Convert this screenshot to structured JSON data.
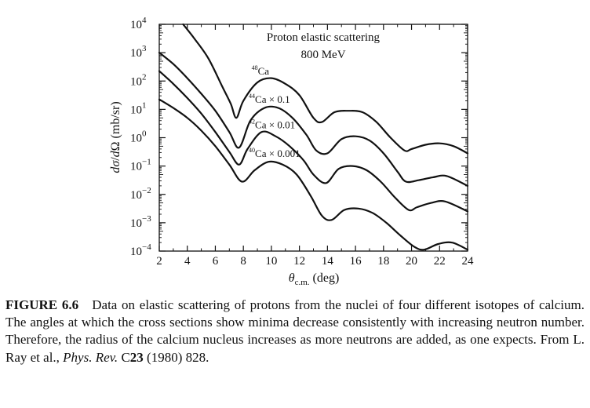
{
  "figure": {
    "title_line1": "Proton elastic scattering",
    "title_line2": "800 MeV",
    "caption": {
      "label": "FIGURE 6.6",
      "text": "Data on elastic scattering of protons from the nuclei of four different isotopes of calcium. The angles at which the cross sections show minima decrease consistently with increasing neutron number. Therefore, the radius of the calcium nucleus increases as more neutrons are added, as one expects. From L. Ray et al., ",
      "journal": "Phys. Rev.",
      "journal_suffix": " C",
      "volume": "23",
      "rest": " (1980) 828."
    }
  },
  "chart_data": {
    "type": "line",
    "title": "Proton elastic scattering 800 MeV",
    "xlabel": "θc.m. (deg)",
    "ylabel": "dσ/dΩ (mb/sr)",
    "xlim": [
      2,
      24
    ],
    "ylim_log10": [
      -4,
      4
    ],
    "log_y": true,
    "grid": false,
    "x_ticks": [
      "2",
      "4",
      "6",
      "8",
      "10",
      "12",
      "14",
      "16",
      "18",
      "20",
      "22",
      "24"
    ],
    "y_ticks": [
      {
        "base": "10",
        "exp": "4"
      },
      {
        "base": "10",
        "exp": "3"
      },
      {
        "base": "10",
        "exp": "2"
      },
      {
        "base": "10",
        "exp": "1"
      },
      {
        "base": "10",
        "exp": "0"
      },
      {
        "base": "10",
        "exp": "−1"
      },
      {
        "base": "10",
        "exp": "−2"
      },
      {
        "base": "10",
        "exp": "−3"
      },
      {
        "base": "10",
        "exp": "−4"
      }
    ],
    "series": [
      {
        "name": "48Ca",
        "label_sup": "48",
        "label_main": "Ca",
        "x": [
          3.7,
          4.5,
          5.5,
          6.5,
          7.1,
          7.5,
          8.0,
          9.0,
          10.0,
          11.0,
          12.0,
          13.0,
          13.6,
          14.5,
          15.5,
          16.5,
          17.5,
          18.5,
          19.5,
          20.0,
          21.0,
          22.0,
          23.0,
          24.0
        ],
        "log10_y": [
          4.0,
          3.5,
          2.8,
          1.8,
          1.2,
          0.7,
          1.3,
          1.95,
          2.1,
          1.9,
          1.5,
          0.7,
          0.55,
          0.9,
          0.95,
          0.9,
          0.55,
          0.0,
          -0.45,
          -0.4,
          -0.25,
          -0.2,
          -0.3,
          -0.55
        ]
      },
      {
        "name": "44Ca × 0.1",
        "label_sup": "44",
        "label_main": "Ca × 0.1",
        "x": [
          2.0,
          3.0,
          4.0,
          5.0,
          6.0,
          7.0,
          7.7,
          8.5,
          9.5,
          10.5,
          11.5,
          12.5,
          13.2,
          14.0,
          15.0,
          16.0,
          17.0,
          18.0,
          19.0,
          19.6,
          20.5,
          21.5,
          22.5,
          24.0
        ],
        "log10_y": [
          3.0,
          2.6,
          2.1,
          1.55,
          0.95,
          0.2,
          -0.35,
          0.6,
          1.05,
          1.05,
          0.7,
          0.1,
          -0.45,
          -0.55,
          -0.05,
          0.05,
          -0.1,
          -0.55,
          -1.2,
          -1.55,
          -1.5,
          -1.4,
          -1.35,
          -1.7
        ]
      },
      {
        "name": "42Ca × 0.01",
        "label_sup": "42",
        "label_main": "Ca × 0.01",
        "x": [
          2.0,
          3.0,
          4.0,
          5.0,
          6.0,
          7.0,
          7.7,
          8.3,
          9.3,
          10.3,
          11.3,
          12.3,
          13.0,
          13.9,
          14.8,
          15.8,
          16.8,
          17.8,
          18.8,
          19.8,
          20.4,
          21.4,
          22.4,
          24.0
        ],
        "log10_y": [
          2.35,
          1.9,
          1.4,
          0.85,
          0.2,
          -0.5,
          -0.95,
          -0.4,
          0.2,
          0.05,
          -0.3,
          -0.8,
          -1.3,
          -1.6,
          -1.1,
          -1.0,
          -1.15,
          -1.55,
          -2.1,
          -2.55,
          -2.45,
          -2.3,
          -2.25,
          -2.6
        ]
      },
      {
        "name": "40Ca × 0.001",
        "label_sup": "40",
        "label_main": "Ca × 0.001",
        "x": [
          2.0,
          3.0,
          4.0,
          5.0,
          6.0,
          7.0,
          7.9,
          8.8,
          9.8,
          10.8,
          11.8,
          12.8,
          13.6,
          14.3,
          15.2,
          16.2,
          17.2,
          18.2,
          19.2,
          20.2,
          20.9,
          21.9,
          22.9,
          24.0
        ],
        "log10_y": [
          1.35,
          1.05,
          0.7,
          0.25,
          -0.3,
          -0.95,
          -1.55,
          -1.15,
          -0.85,
          -0.95,
          -1.3,
          -2.05,
          -2.75,
          -2.9,
          -2.55,
          -2.5,
          -2.65,
          -3.0,
          -3.45,
          -3.85,
          -3.95,
          -3.75,
          -3.7,
          -3.95
        ]
      }
    ]
  }
}
